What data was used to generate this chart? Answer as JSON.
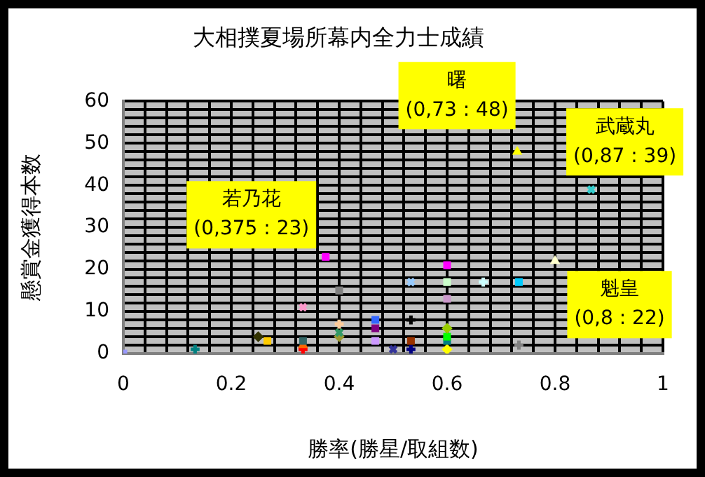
{
  "chart_data": {
    "type": "scatter",
    "title": "大相撲夏場所幕内全力士成績",
    "xlabel": "勝率(勝星/取組数)",
    "ylabel": "懸賞金獲得本数",
    "xlim": [
      0,
      1
    ],
    "ylim": [
      0,
      60
    ],
    "xticks": [
      0,
      {
        "value": 0.04,
        "label": null
      },
      {
        "value": 0.08,
        "label": null
      },
      {
        "value": 0.12,
        "label": null
      },
      {
        "value": 0.16,
        "label": null
      },
      0.2,
      {
        "value": 0.24,
        "label": null
      },
      {
        "value": 0.28,
        "label": null
      },
      {
        "value": 0.32,
        "label": null
      },
      {
        "value": 0.36,
        "label": null
      },
      0.4,
      {
        "value": 0.44,
        "label": null
      },
      {
        "value": 0.48,
        "label": null
      },
      {
        "value": 0.52,
        "label": null
      },
      {
        "value": 0.56,
        "label": null
      },
      0.6,
      {
        "value": 0.64,
        "label": null
      },
      {
        "value": 0.68,
        "label": null
      },
      {
        "value": 0.72,
        "label": null
      },
      {
        "value": 0.76,
        "label": null
      },
      0.8,
      {
        "value": 0.84,
        "label": null
      },
      {
        "value": 0.88,
        "label": null
      },
      {
        "value": 0.92,
        "label": null
      },
      {
        "value": 0.96,
        "label": null
      },
      1
    ],
    "yticks": [
      0,
      {
        "value": 2,
        "label": null
      },
      {
        "value": 4,
        "label": null
      },
      {
        "value": 6,
        "label": null
      },
      {
        "value": 8,
        "label": null
      },
      10,
      {
        "value": 12,
        "label": null
      },
      {
        "value": 14,
        "label": null
      },
      {
        "value": 16,
        "label": null
      },
      {
        "value": 18,
        "label": null
      },
      20,
      {
        "value": 22,
        "label": null
      },
      {
        "value": 24,
        "label": null
      },
      {
        "value": 26,
        "label": null
      },
      {
        "value": 28,
        "label": null
      },
      30,
      {
        "value": 32,
        "label": null
      },
      {
        "value": 34,
        "label": null
      },
      {
        "value": 36,
        "label": null
      },
      {
        "value": 38,
        "label": null
      },
      40,
      {
        "value": 42,
        "label": null
      },
      {
        "value": 44,
        "label": null
      },
      {
        "value": 46,
        "label": null
      },
      {
        "value": 48,
        "label": null
      },
      50,
      {
        "value": 52,
        "label": null
      },
      {
        "value": 54,
        "label": null
      },
      {
        "value": 56,
        "label": null
      },
      {
        "value": 58,
        "label": null
      },
      60
    ],
    "grid": true,
    "legend": false,
    "series": [
      {
        "color": "#9999ff",
        "marker": "square",
        "x": [
          0
        ],
        "values": [
          0
        ]
      },
      {
        "color": "#008080",
        "marker": "cross",
        "x": [
          0.133
        ],
        "values": [
          1
        ]
      },
      {
        "color": "#333300",
        "marker": "diamond",
        "x": [
          0.25
        ],
        "values": [
          4
        ]
      },
      {
        "color": "#ffcc00",
        "marker": "square",
        "x": [
          0.267
        ],
        "values": [
          3
        ]
      },
      {
        "color": "#336666",
        "marker": "square",
        "x": [
          0.333
        ],
        "values": [
          3
        ]
      },
      {
        "color": "#ff6600",
        "marker": "triangle",
        "x": [
          0.333
        ],
        "values": [
          2
        ]
      },
      {
        "color": "#ff0000",
        "marker": "cross",
        "x": [
          0.333
        ],
        "values": [
          1
        ]
      },
      {
        "color": "#ff00ff",
        "marker": "square",
        "x": [
          0.375
        ],
        "values": [
          23
        ]
      },
      {
        "color": "#808080",
        "marker": "square",
        "x": [
          0.4
        ],
        "values": [
          15
        ]
      },
      {
        "color": "#ff99cc",
        "marker": "x",
        "x": [
          0.333
        ],
        "values": [
          11
        ]
      },
      {
        "color": "#ffcc99",
        "marker": "cross",
        "x": [
          0.4
        ],
        "values": [
          7
        ]
      },
      {
        "color": "#339966",
        "marker": "x",
        "x": [
          0.4
        ],
        "values": [
          5
        ]
      },
      {
        "color": "#999933",
        "marker": "diamond",
        "x": [
          0.4
        ],
        "values": [
          4
        ]
      },
      {
        "color": "#3366ff",
        "marker": "square",
        "x": [
          0.467
        ],
        "values": [
          8
        ]
      },
      {
        "color": "#800080",
        "marker": "square",
        "x": [
          0.467
        ],
        "values": [
          6
        ]
      },
      {
        "color": "#cc99ff",
        "marker": "square",
        "x": [
          0.467
        ],
        "values": [
          3
        ]
      },
      {
        "color": "#333399",
        "marker": "x",
        "x": [
          0.5
        ],
        "values": [
          1
        ]
      },
      {
        "color": "#99ccff",
        "marker": "x",
        "x": [
          0.533
        ],
        "values": [
          17
        ]
      },
      {
        "color": "#000000",
        "marker": "cross",
        "x": [
          0.533
        ],
        "values": [
          8
        ]
      },
      {
        "color": "#993300",
        "marker": "square",
        "x": [
          0.533
        ],
        "values": [
          3
        ]
      },
      {
        "color": "#000080",
        "marker": "cross",
        "x": [
          0.533
        ],
        "values": [
          1
        ]
      },
      {
        "color": "#ff00ff",
        "marker": "square",
        "x": [
          0.6
        ],
        "values": [
          21
        ]
      },
      {
        "color": "#ccffcc",
        "marker": "square",
        "x": [
          0.6
        ],
        "values": [
          17
        ]
      },
      {
        "color": "#cc99cc",
        "marker": "square",
        "x": [
          0.6
        ],
        "values": [
          13
        ]
      },
      {
        "color": "#99cc00",
        "marker": "diamond",
        "x": [
          0.6
        ],
        "values": [
          6
        ]
      },
      {
        "color": "#00ff00",
        "marker": "square",
        "x": [
          0.6
        ],
        "values": [
          4
        ]
      },
      {
        "color": "#008080",
        "marker": "square",
        "x": [
          0.6
        ],
        "values": [
          3
        ]
      },
      {
        "color": "#ffff00",
        "marker": "diamond",
        "x": [
          0.6
        ],
        "values": [
          1
        ]
      },
      {
        "color": "#ccffff",
        "marker": "cross",
        "x": [
          0.667
        ],
        "values": [
          17
        ]
      },
      {
        "color": "#00ccff",
        "marker": "square",
        "x": [
          0.733
        ],
        "values": [
          17
        ]
      },
      {
        "color": "#808080",
        "marker": "cross",
        "x": [
          0.733
        ],
        "values": [
          2
        ]
      },
      {
        "color": "#ffff00",
        "marker": "triangle",
        "x": [
          0.73
        ],
        "values": [
          48
        ]
      },
      {
        "color": "#33cccc",
        "marker": "x",
        "x": [
          0.867
        ],
        "values": [
          39
        ]
      },
      {
        "color": "#ffffcc",
        "marker": "triangle",
        "x": [
          0.8
        ],
        "values": [
          22
        ]
      }
    ],
    "annotations": [
      {
        "text": "若乃花\n(0,375 : 23)",
        "x": 0.375,
        "y": 23
      },
      {
        "text": "曙\n(0,73 : 48)",
        "x": 0.73,
        "y": 48
      },
      {
        "text": "武蔵丸\n(0,87 : 39)",
        "x": 0.867,
        "y": 39
      },
      {
        "text": "魁皇\n(0,8 : 22)",
        "x": 0.8,
        "y": 22
      }
    ]
  }
}
